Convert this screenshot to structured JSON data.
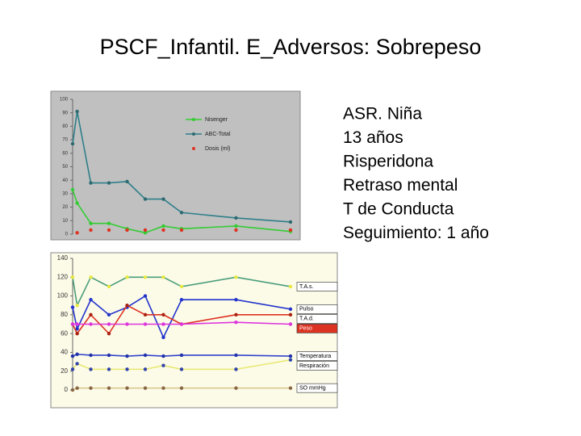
{
  "title": "PSCF_Infantil. E_Adversos: Sobrepeso",
  "text": [
    "ASR. Niña",
    "13 años",
    "Risperidona",
    "Retraso mental",
    "T de Conducta",
    "Seguimiento: 1 año"
  ],
  "chart_data": [
    {
      "type": "line",
      "background": "#c0c0c0",
      "legend": "upper right",
      "xlim": [
        0,
        12
      ],
      "ylim": [
        0,
        100
      ],
      "yticks": [
        0,
        10,
        20,
        30,
        40,
        50,
        60,
        70,
        80,
        90,
        100
      ],
      "series": [
        {
          "name": "Nisenger",
          "color": "#33cc33",
          "marker_color": "#33cc33",
          "line": true,
          "x": [
            0,
            0.25,
            1,
            2,
            3,
            4,
            5,
            6,
            9,
            12
          ],
          "values": [
            33,
            23,
            8,
            8,
            4,
            1,
            6,
            4,
            6,
            2
          ]
        },
        {
          "name": "ABC-Total",
          "color": "#2e7f8a",
          "marker_color": "#2e6a70",
          "line": true,
          "x": [
            0,
            0.25,
            1,
            2,
            3,
            4,
            5,
            6,
            9,
            12
          ],
          "values": [
            67,
            91,
            38,
            38,
            39,
            26,
            26,
            16,
            12,
            9
          ]
        },
        {
          "name": "Dosis (ml)",
          "color": "#dd3322",
          "marker_color": "#dd3322",
          "line": false,
          "x": [
            0.25,
            1,
            2,
            3,
            4,
            5,
            6,
            9,
            12
          ],
          "values": [
            1,
            3,
            3,
            3,
            3,
            3,
            3,
            3,
            3
          ]
        }
      ]
    },
    {
      "type": "line",
      "background": "#fcfbe8",
      "legend": "line end",
      "xlim": [
        0,
        12
      ],
      "ylim": [
        0,
        140
      ],
      "yticks": [
        0,
        20,
        40,
        60,
        80,
        100,
        120,
        140
      ],
      "series": [
        {
          "name": "T.A.s.",
          "color": "#4a9e7a",
          "marker_color": "#e8e840",
          "line": true,
          "x": [
            0,
            0.25,
            1,
            2,
            3,
            4,
            5,
            6,
            9,
            12
          ],
          "values": [
            120,
            90,
            120,
            110,
            120,
            120,
            120,
            110,
            120,
            110
          ]
        },
        {
          "name": "Pulso",
          "color": "#2233cc",
          "marker_color": "#2233cc",
          "line": true,
          "x": [
            0,
            0.25,
            1,
            2,
            3,
            4,
            5,
            6,
            9,
            12
          ],
          "values": [
            88,
            65,
            96,
            80,
            88,
            100,
            56,
            96,
            96,
            86
          ]
        },
        {
          "name": "T.A.d.",
          "color": "#dd3322",
          "marker_color": "#aa2211",
          "line": true,
          "x": [
            0,
            0.25,
            1,
            2,
            3,
            4,
            5,
            6,
            9,
            12
          ],
          "values": [
            70,
            60,
            80,
            60,
            90,
            80,
            80,
            70,
            80,
            80
          ]
        },
        {
          "name": "Peso",
          "color": "#dd33dd",
          "marker_color": "#dd33dd",
          "line": true,
          "label_fill": "#dd3322",
          "x": [
            0,
            0.25,
            1,
            2,
            3,
            4,
            5,
            6,
            9,
            12
          ],
          "values": [
            70,
            70,
            70,
            70,
            70,
            70,
            70,
            70,
            72,
            70
          ]
        },
        {
          "name": "Temperatura",
          "color": "#3344cc",
          "marker_color": "#2233aa",
          "line": true,
          "x": [
            0,
            0.25,
            1,
            2,
            3,
            4,
            5,
            6,
            9,
            12
          ],
          "values": [
            36,
            38,
            37,
            37,
            36,
            37,
            36,
            37,
            37,
            36
          ]
        },
        {
          "name": "Respiración",
          "color": "#e8e870",
          "marker_color": "#3344aa",
          "line": true,
          "x": [
            0,
            0.25,
            1,
            2,
            3,
            4,
            5,
            6,
            9,
            12
          ],
          "values": [
            22,
            28,
            22,
            22,
            22,
            22,
            26,
            22,
            22,
            32
          ]
        },
        {
          "name": "SO mmHg",
          "color": "#d8c890",
          "marker_color": "#886644",
          "line": true,
          "x": [
            0,
            0.25,
            1,
            2,
            3,
            4,
            5,
            6,
            9,
            12
          ],
          "values": [
            0,
            2,
            2,
            2,
            2,
            2,
            2,
            2,
            2,
            2
          ]
        }
      ]
    }
  ]
}
